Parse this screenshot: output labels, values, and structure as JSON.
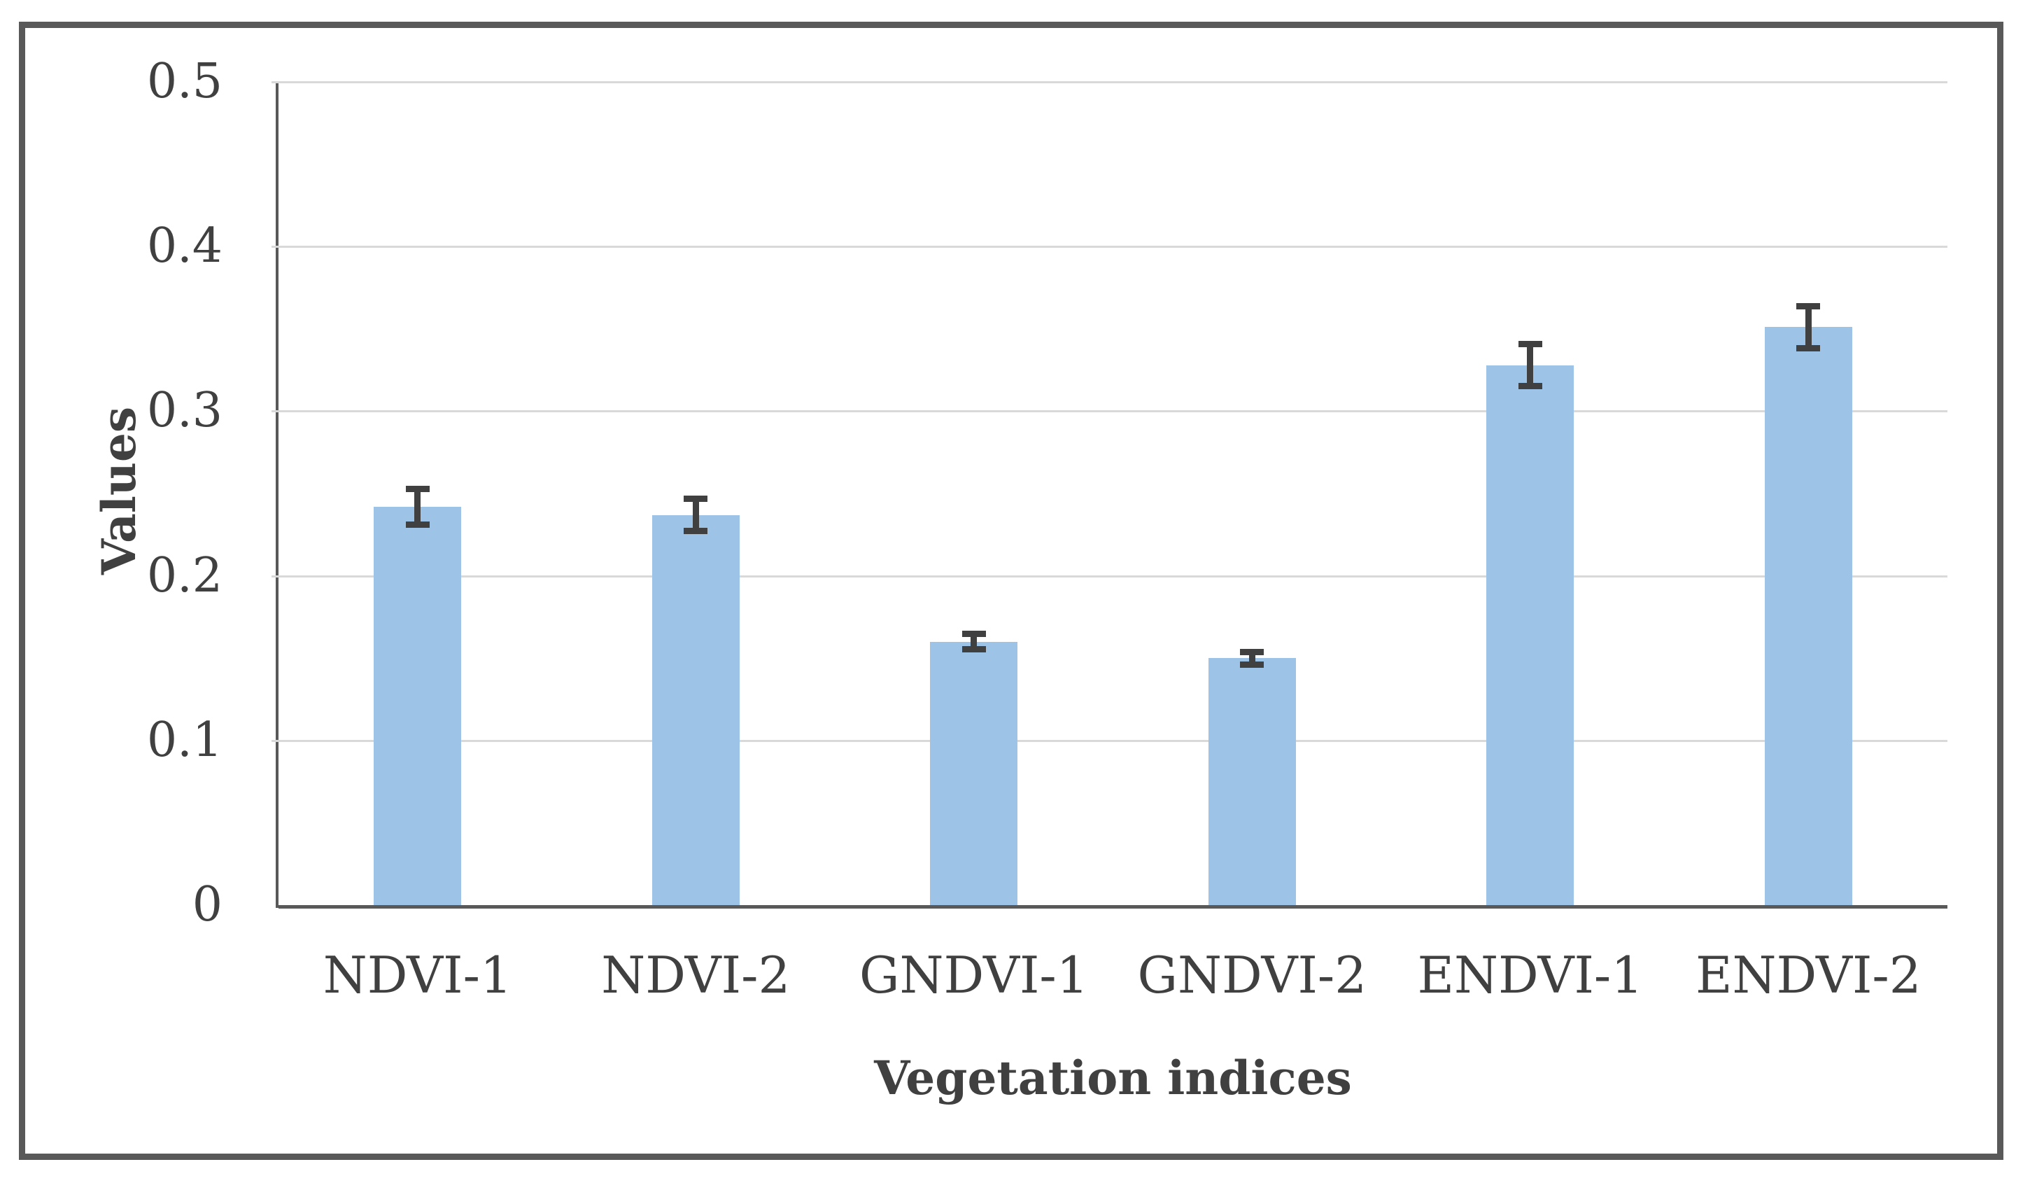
{
  "figure": {
    "background_color": "#ffffff",
    "border_color": "#595959",
    "axis_line_color": "#595959",
    "gridline_color": "#D9D9D9",
    "text_color": "#404040",
    "bar_color": "#9DC3E6",
    "error_bar_color": "#404040"
  },
  "chart_data": {
    "type": "bar",
    "title": "",
    "categories": [
      "NDVI-1",
      "NDVI-2",
      "GNDVI-1",
      "GNDVI-2",
      "ENDVI-1",
      "ENDVI-2"
    ],
    "series": [
      {
        "name": "Values",
        "values": [
          0.242,
          0.237,
          0.16,
          0.15,
          0.328,
          0.351
        ],
        "error_bars": [
          0.011,
          0.01,
          0.005,
          0.004,
          0.013,
          0.013
        ]
      }
    ],
    "xlabel": "Vegetation indices",
    "ylabel": "Values",
    "ylim": [
      0,
      0.5
    ],
    "ytick_step": 0.1,
    "yticks": [
      "0",
      "0.1",
      "0.2",
      "0.3",
      "0.4",
      "0.5"
    ],
    "grid": true,
    "legend_position": "none"
  }
}
